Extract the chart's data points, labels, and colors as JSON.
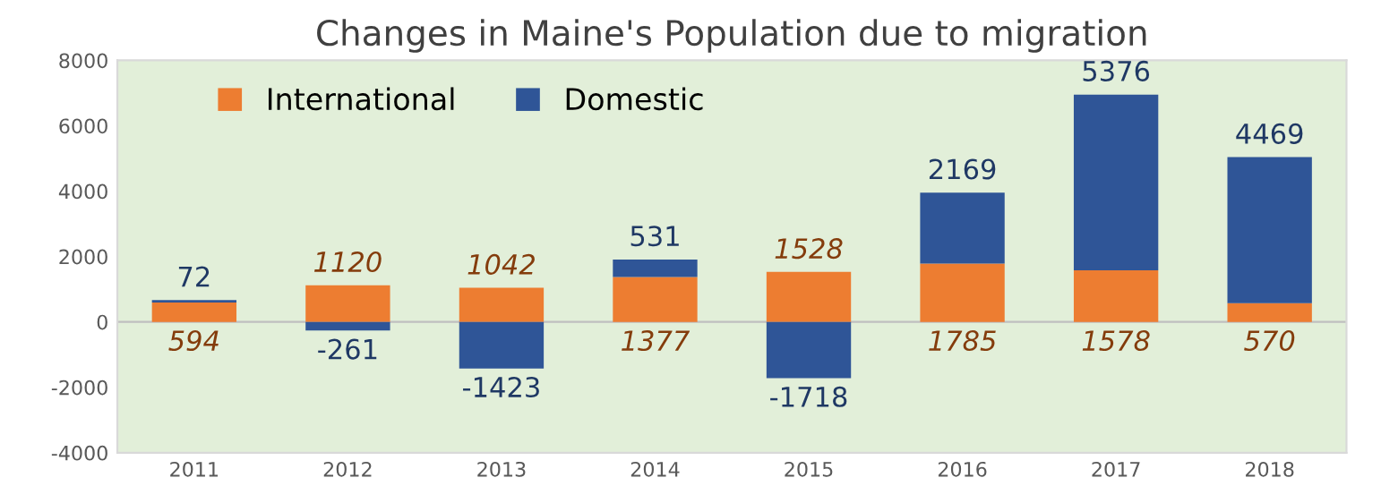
{
  "chart_data": {
    "type": "bar",
    "title": "Changes in Maine's Population due to migration",
    "categories": [
      "2011",
      "2012",
      "2013",
      "2014",
      "2015",
      "2016",
      "2017",
      "2018"
    ],
    "series": [
      {
        "name": "International",
        "color": "#ed7d31",
        "values": [
          594,
          1120,
          1042,
          1377,
          1528,
          1785,
          1578,
          570
        ]
      },
      {
        "name": "Domestic",
        "color": "#2f5597",
        "values": [
          72,
          -261,
          -1423,
          531,
          -1718,
          2169,
          5376,
          4469
        ]
      }
    ],
    "stacked": true,
    "data_labels": true,
    "ylim": [
      -4000,
      8000
    ],
    "yticks": [
      -4000,
      -2000,
      0,
      2000,
      4000,
      6000,
      8000
    ],
    "legend": "top left"
  }
}
